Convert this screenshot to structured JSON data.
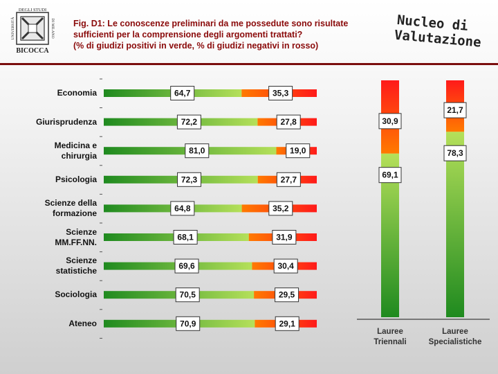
{
  "header": {
    "title_lines": [
      "Fig. D1: Le conoscenze preliminari da me possedute sono risultate",
      "sufficienti per la comprensione degli argomenti trattati?",
      "(% di giudizi positivi in verde, % di giudizi negativi in rosso)"
    ],
    "brand_lines": [
      "Nucleo di",
      "Valutazione"
    ],
    "logo": {
      "top_text": "DEGLI STUDI",
      "left_text": "UNIVERSITÀ",
      "right_text": "DI MILANO",
      "bottom_text": "BICOCCA",
      "icon": "bicocca-logo-icon"
    }
  },
  "colors": {
    "positive_dark": "#1f8a1f",
    "positive_light": "#a8d84a",
    "negative_orange": "#ff6a00",
    "negative_red": "#ff2020",
    "title": "#8a0a0a",
    "rule": "#7a0d0d"
  },
  "chart_data": [
    {
      "type": "bar",
      "orientation": "horizontal",
      "stacked": true,
      "title": "",
      "categories": [
        [
          "Economia"
        ],
        [
          "Giurisprudenza"
        ],
        [
          "Medicina e",
          "chirurgia"
        ],
        [
          "Psicologia"
        ],
        [
          "Scienze della",
          "formazione"
        ],
        [
          "Scienze",
          "MM.FF.NN."
        ],
        [
          "Scienze",
          "statistiche"
        ],
        [
          "Sociologia"
        ],
        [
          "Ateneo"
        ]
      ],
      "series": [
        {
          "name": "positivi",
          "values": [
            64.7,
            72.2,
            81.0,
            72.3,
            64.8,
            68.1,
            69.6,
            70.5,
            70.9
          ]
        },
        {
          "name": "negativi",
          "values": [
            35.3,
            27.8,
            19.0,
            27.7,
            35.2,
            31.9,
            30.4,
            29.5,
            29.1
          ]
        }
      ],
      "value_labels_positive": [
        "64,7",
        "72,2",
        "81,0",
        "72,3",
        "64,8",
        "68,1",
        "69,6",
        "70,5",
        "70,9"
      ],
      "value_labels_negative": [
        "35,3",
        "27,8",
        "19,0",
        "27,7",
        "35,2",
        "31,9",
        "30,4",
        "29,5",
        "29,1"
      ],
      "xlim": [
        0,
        100
      ]
    },
    {
      "type": "bar",
      "orientation": "vertical",
      "stacked": true,
      "categories": [
        [
          "Lauree",
          "Triennali"
        ],
        [
          "Lauree",
          "Specialistiche"
        ]
      ],
      "series": [
        {
          "name": "positivi",
          "values": [
            69.1,
            78.3
          ]
        },
        {
          "name": "negativi",
          "values": [
            30.9,
            21.7
          ]
        }
      ],
      "value_labels_positive": [
        "69,1",
        "78,3"
      ],
      "value_labels_negative": [
        "30,9",
        "21,7"
      ],
      "ylim": [
        0,
        100
      ]
    }
  ]
}
